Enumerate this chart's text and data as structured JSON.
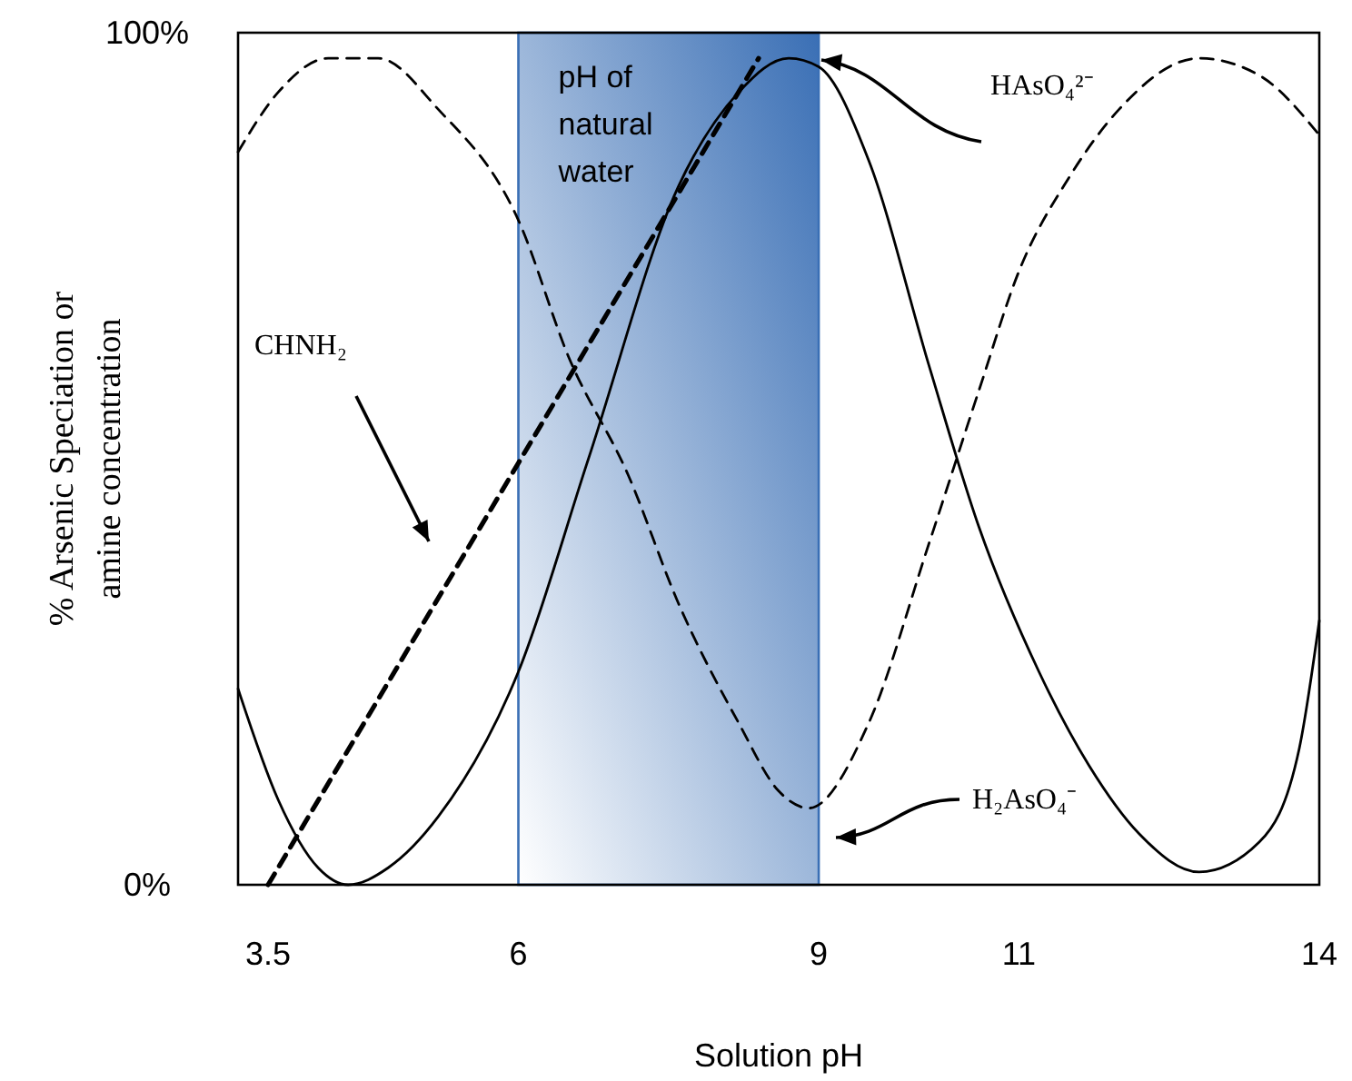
{
  "chart_data": {
    "type": "line",
    "xlabel": "Solution pH",
    "ylabel": "% Arsenic Speciation or amine concentration",
    "xlim": [
      3.2,
      14
    ],
    "xticks": [
      3.5,
      6,
      9,
      11,
      14
    ],
    "ylim": [
      0,
      100
    ],
    "yticks": [
      {
        "value": 0,
        "label": "0%"
      },
      {
        "value": 100,
        "label": "100%"
      }
    ],
    "grid": false,
    "series": [
      {
        "color": "#000000",
        "line_style": "solid",
        "x": [
          3.2,
          3.6,
          4.0,
          4.3,
          4.7,
          5.2,
          6,
          6.7,
          7.6,
          8.2,
          8.7,
          9,
          9.5,
          10.1,
          10.6,
          11.2,
          11.7,
          12.2,
          12.8,
          13.4,
          13.8,
          14
        ],
        "values": [
          23,
          10,
          2,
          0,
          2,
          8,
          25,
          50,
          82,
          93,
          97,
          96,
          85,
          61,
          42,
          25,
          14,
          6,
          1.5,
          5,
          16,
          31
        ]
      },
      {
        "color": "#000000",
        "line_style": "dashed",
        "x": [
          3.2,
          3.6,
          4.1,
          4.6,
          5.2,
          6,
          6.5,
          7.1,
          7.6,
          8.2,
          8.6,
          8.9,
          9.5,
          10.1,
          10.6,
          11,
          11.5,
          12,
          12.8,
          13.4,
          14
        ],
        "values": [
          86,
          93,
          97,
          97,
          91,
          78,
          62,
          48,
          33,
          19,
          11,
          9,
          19,
          40,
          58,
          72,
          83,
          91,
          97,
          95,
          88
        ]
      },
      {
        "color": "#000000",
        "line_style": "dashed",
        "x": [
          3.5,
          8.4
        ],
        "values": [
          0,
          97
        ]
      }
    ],
    "annotations": [
      "HAsO₄²⁻",
      "H₂AsO₄⁻",
      "CHNH₂"
    ],
    "bands": [
      {
        "axis": "x",
        "from": 6,
        "to": 9,
        "label": "pH of natural water",
        "color": "#3a6fb5"
      }
    ]
  }
}
